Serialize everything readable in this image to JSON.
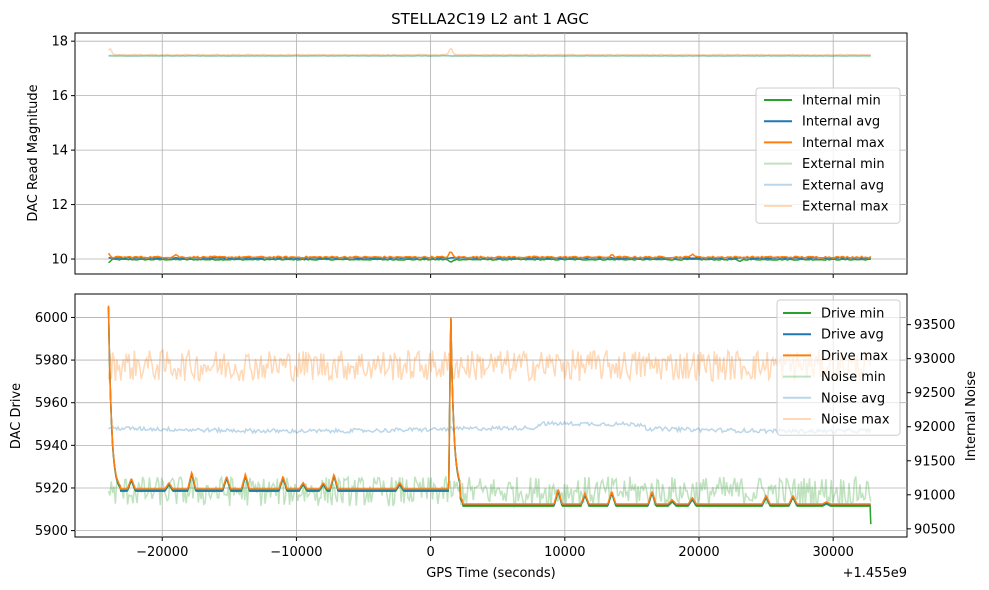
{
  "chart_data": [
    {
      "type": "line",
      "title": "STELLA2C19 L2 ant 1 AGC",
      "xlabel": "",
      "ylabel": "DAC Read Magnitude",
      "xlim": [
        -26500,
        35500
      ],
      "ylim": [
        9.45,
        18.3
      ],
      "xticks": [
        -20000,
        -10000,
        0,
        10000,
        20000,
        30000
      ],
      "xtick_labels": [
        "",
        "",
        "",
        "",
        "",
        ""
      ],
      "yticks": [
        10,
        12,
        14,
        16,
        18
      ],
      "ytick_labels": [
        "10",
        "12",
        "14",
        "16",
        "18"
      ],
      "grid": true,
      "legend_position": "center-right",
      "series": [
        {
          "name": "Internal min",
          "color": "#2ca02c",
          "alpha": 1.0,
          "base": 9.98,
          "noise": 0.02,
          "spikes": [
            [
              -24000,
              -0.12
            ],
            [
              1500,
              -0.12
            ],
            [
              23000,
              -0.08
            ]
          ]
        },
        {
          "name": "Internal avg",
          "color": "#1f77b4",
          "alpha": 1.0,
          "base": 10.04,
          "noise": 0.015,
          "spikes": []
        },
        {
          "name": "Internal max",
          "color": "#ff7f0e",
          "alpha": 1.0,
          "base": 10.07,
          "noise": 0.03,
          "spikes": [
            [
              -24000,
              0.12
            ],
            [
              -19000,
              0.1
            ],
            [
              1500,
              0.22
            ],
            [
              19500,
              0.15
            ],
            [
              13500,
              0.08
            ]
          ]
        },
        {
          "name": "External min",
          "color": "#2ca02c",
          "alpha": 0.3,
          "base": 17.45,
          "noise": 0.01,
          "spikes": []
        },
        {
          "name": "External avg",
          "color": "#1f77b4",
          "alpha": 0.3,
          "base": 17.47,
          "noise": 0.01,
          "spikes": []
        },
        {
          "name": "External max",
          "color": "#ff7f0e",
          "alpha": 0.3,
          "base": 17.5,
          "noise": 0.015,
          "spikes": [
            [
              -23900,
              0.25
            ],
            [
              1500,
              0.3
            ]
          ]
        }
      ]
    },
    {
      "type": "line",
      "title": "",
      "xlabel": "GPS Time (seconds)",
      "x_offset_label": "+1.455e9",
      "ylabel": "DAC Drive",
      "y2label": "Internal Noise",
      "xlim": [
        -26500,
        35500
      ],
      "ylim": [
        5897,
        6011
      ],
      "y2lim": [
        90380,
        93950
      ],
      "xticks": [
        -20000,
        -10000,
        0,
        10000,
        20000,
        30000
      ],
      "xtick_labels": [
        "−20000",
        "−10000",
        "0",
        "10000",
        "20000",
        "30000"
      ],
      "yticks": [
        5900,
        5920,
        5940,
        5960,
        5980,
        6000
      ],
      "ytick_labels": [
        "5900",
        "5920",
        "5940",
        "5960",
        "5980",
        "6000"
      ],
      "y2ticks": [
        90500,
        91000,
        91500,
        92000,
        92500,
        93000,
        93500
      ],
      "y2tick_labels": [
        "90500",
        "91000",
        "91500",
        "92000",
        "92500",
        "93000",
        "93500"
      ],
      "grid": true,
      "legend_position": "upper-right",
      "x_start": -24000,
      "x_end": 32800,
      "series": [
        {
          "name": "Drive min",
          "color": "#2ca02c",
          "alpha": 1.0,
          "axis": "left"
        },
        {
          "name": "Drive avg",
          "color": "#1f77b4",
          "alpha": 1.0,
          "axis": "left"
        },
        {
          "name": "Drive max",
          "color": "#ff7f0e",
          "alpha": 1.0,
          "axis": "left"
        },
        {
          "name": "Noise min",
          "color": "#2ca02c",
          "alpha": 0.3,
          "axis": "right",
          "base": 91050,
          "amp": 220
        },
        {
          "name": "Noise avg",
          "color": "#1f77b4",
          "alpha": 0.3,
          "axis": "right",
          "base": 91960,
          "amp": 30
        },
        {
          "name": "Noise max",
          "color": "#ff7f0e",
          "alpha": 0.3,
          "axis": "right",
          "base": 92900,
          "amp": 230
        }
      ],
      "drive_profile": {
        "level_before": 5919,
        "level_after": 5912,
        "step_x": 2200,
        "peaks": [
          [
            -24000,
            6005
          ],
          [
            1500,
            6003
          ]
        ],
        "bumps": [
          [
            -22300,
            5924
          ],
          [
            -19500,
            5922
          ],
          [
            -17800,
            5927
          ],
          [
            -15200,
            5925
          ],
          [
            -13800,
            5926
          ],
          [
            -11000,
            5925
          ],
          [
            -9500,
            5922
          ],
          [
            -8000,
            5922
          ],
          [
            -7200,
            5926
          ],
          [
            -2300,
            5922
          ],
          [
            9500,
            5919
          ],
          [
            11500,
            5917
          ],
          [
            13500,
            5918
          ],
          [
            16500,
            5918
          ],
          [
            18000,
            5914
          ],
          [
            19500,
            5915
          ],
          [
            25000,
            5916
          ],
          [
            27000,
            5916
          ],
          [
            29500,
            5913
          ]
        ]
      }
    }
  ]
}
